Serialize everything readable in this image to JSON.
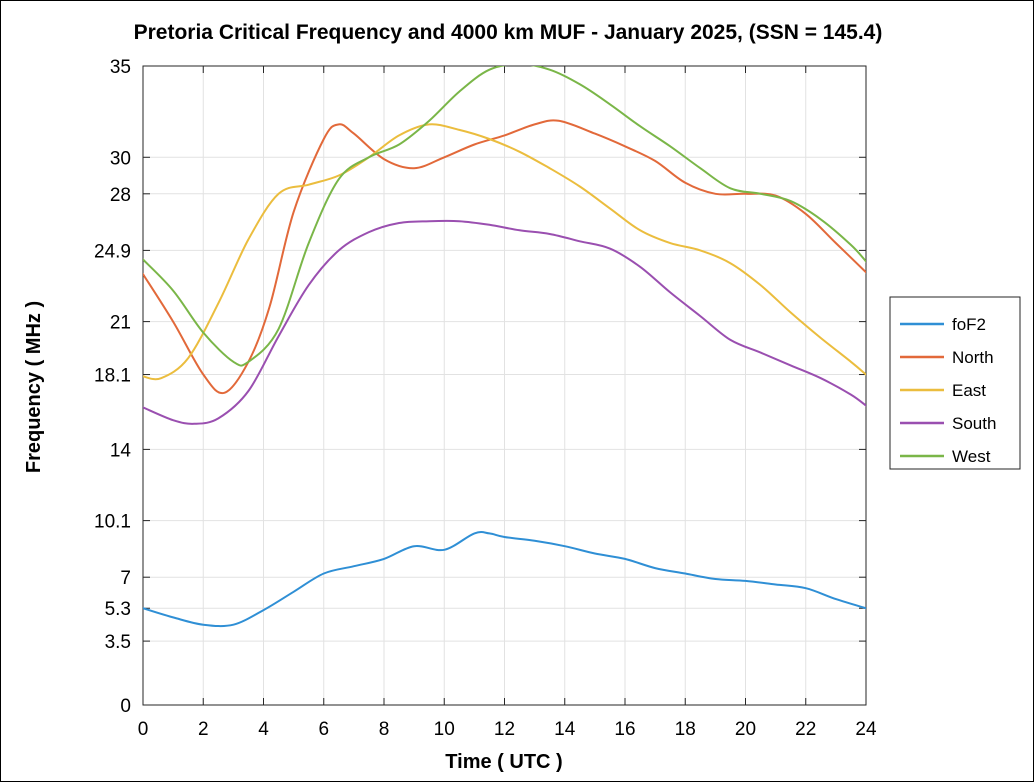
{
  "chart_data": {
    "type": "line",
    "title": "Pretoria Critical Frequency and 4000 km MUF - January 2025, (SSN = 145.4)",
    "xlabel": "Time ( UTC )",
    "ylabel": "Frequency ( MHz )",
    "xlim": [
      0,
      24
    ],
    "ylim": [
      0,
      35
    ],
    "xticks": [
      "0",
      "2",
      "4",
      "6",
      "8",
      "10",
      "12",
      "14",
      "16",
      "18",
      "20",
      "22",
      "24"
    ],
    "yticks": [
      "0",
      "3.5",
      "5.3",
      "7",
      "10.1",
      "14",
      "18.1",
      "21",
      "24.9",
      "28",
      "30",
      "35"
    ],
    "grid": true,
    "legend_position": "right",
    "series": [
      {
        "name": "foF2",
        "color": "#2f8fd5",
        "x": [
          0,
          1,
          2,
          3,
          4,
          5,
          6,
          7,
          8,
          9,
          10,
          11,
          11.5,
          12,
          13,
          14,
          15,
          16,
          17,
          18,
          19,
          20,
          21,
          22,
          23,
          24
        ],
        "values": [
          5.3,
          4.8,
          4.4,
          4.4,
          5.2,
          6.2,
          7.2,
          7.6,
          8.0,
          8.7,
          8.5,
          9.4,
          9.4,
          9.2,
          9.0,
          8.7,
          8.3,
          8.0,
          7.5,
          7.2,
          6.9,
          6.8,
          6.6,
          6.4,
          5.8,
          5.3
        ]
      },
      {
        "name": "North",
        "color": "#e2693a",
        "x": [
          0,
          1,
          2,
          2.7,
          3.5,
          4.2,
          5,
          6,
          6.5,
          7,
          8,
          9,
          10,
          11,
          12,
          13,
          13.8,
          15,
          16,
          17,
          18,
          19,
          20,
          21,
          22,
          23,
          24
        ],
        "values": [
          23.6,
          21.0,
          18.1,
          17.1,
          18.8,
          21.8,
          27.0,
          31.0,
          31.8,
          31.3,
          29.9,
          29.4,
          30.0,
          30.7,
          31.2,
          31.8,
          32.0,
          31.3,
          30.6,
          29.8,
          28.6,
          28.0,
          28.0,
          27.9,
          26.9,
          25.3,
          23.7
        ]
      },
      {
        "name": "East",
        "color": "#ebbd3e",
        "x": [
          0,
          0.6,
          1.5,
          2.5,
          3.5,
          4.5,
          5.5,
          6.5,
          7.5,
          8.5,
          9.5,
          10.5,
          11.5,
          12.5,
          13.5,
          14.5,
          15.5,
          16.5,
          17.5,
          18.5,
          19.5,
          20.5,
          21.5,
          22.5,
          23.5,
          24
        ],
        "values": [
          18.0,
          17.9,
          19.0,
          22.0,
          25.5,
          28.0,
          28.5,
          29.0,
          30.0,
          31.2,
          31.8,
          31.5,
          31.0,
          30.3,
          29.4,
          28.4,
          27.2,
          26.0,
          25.3,
          24.9,
          24.2,
          23.0,
          21.5,
          20.1,
          18.8,
          18.1
        ]
      },
      {
        "name": "South",
        "color": "#9a4fb0",
        "x": [
          0,
          1,
          1.7,
          2.5,
          3.5,
          4.5,
          5.5,
          6.5,
          7.5,
          8.5,
          9.5,
          10.5,
          11.5,
          12.5,
          13.5,
          14.5,
          15.5,
          16.5,
          17.5,
          18.5,
          19.5,
          20.5,
          21.5,
          22.5,
          23.5,
          24
        ],
        "values": [
          16.3,
          15.6,
          15.4,
          15.7,
          17.2,
          20.2,
          23.0,
          24.9,
          25.9,
          26.4,
          26.5,
          26.5,
          26.3,
          26.0,
          25.8,
          25.4,
          25.0,
          24.0,
          22.6,
          21.3,
          20.0,
          19.3,
          18.6,
          17.9,
          17.0,
          16.4
        ]
      },
      {
        "name": "West",
        "color": "#7ab648",
        "x": [
          0,
          1,
          2,
          3,
          3.5,
          4.5,
          5.5,
          6.5,
          7.5,
          8.5,
          9.5,
          10.5,
          11.5,
          12.5,
          13.5,
          14.5,
          15.5,
          16.5,
          17.5,
          18.5,
          19.5,
          20.5,
          21.5,
          22.5,
          23.5,
          24
        ],
        "values": [
          24.4,
          22.7,
          20.4,
          18.8,
          18.8,
          20.6,
          25.3,
          28.8,
          30.0,
          30.7,
          32.0,
          33.6,
          34.8,
          35.1,
          34.8,
          34.0,
          32.9,
          31.7,
          30.6,
          29.4,
          28.3,
          28.0,
          27.6,
          26.6,
          25.2,
          24.3
        ]
      }
    ]
  }
}
